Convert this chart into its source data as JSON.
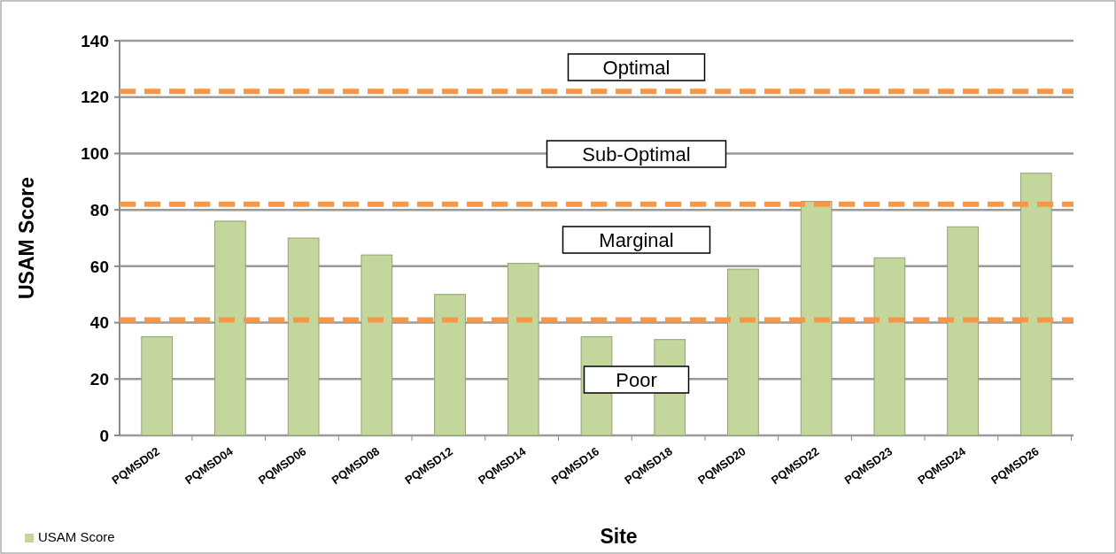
{
  "chart_data": {
    "type": "bar",
    "xlabel": "Site",
    "ylabel": "USAM Score",
    "categories": [
      "PQMSD02",
      "PQMSD04",
      "PQMSD06",
      "PQMSD08",
      "PQMSD12",
      "PQMSD14",
      "PQMSD16",
      "PQMSD18",
      "PQMSD20",
      "PQMSD22",
      "PQMSD23",
      "PQMSD24",
      "PQMSD26"
    ],
    "series": [
      {
        "name": "USAM Score",
        "color": "#c3d69b",
        "values": [
          35,
          76,
          70,
          64,
          50,
          61,
          35,
          34,
          59,
          83,
          63,
          74,
          93
        ]
      }
    ],
    "ylim": [
      0,
      140
    ],
    "yticks": [
      0,
      20,
      40,
      60,
      80,
      100,
      120,
      140
    ],
    "grid": "y",
    "legend": "bottom left",
    "ref_lines": [
      {
        "axis": "y",
        "value": 41,
        "color": "#f79646",
        "line_style": "dashed"
      },
      {
        "axis": "y",
        "value": 82,
        "color": "#f79646",
        "line_style": "dashed"
      },
      {
        "axis": "y",
        "value": 122,
        "color": "#f79646",
        "line_style": "dashed"
      }
    ],
    "annotations": [
      "Optimal",
      "Sub-Optimal",
      "Marginal",
      "Poor"
    ]
  }
}
